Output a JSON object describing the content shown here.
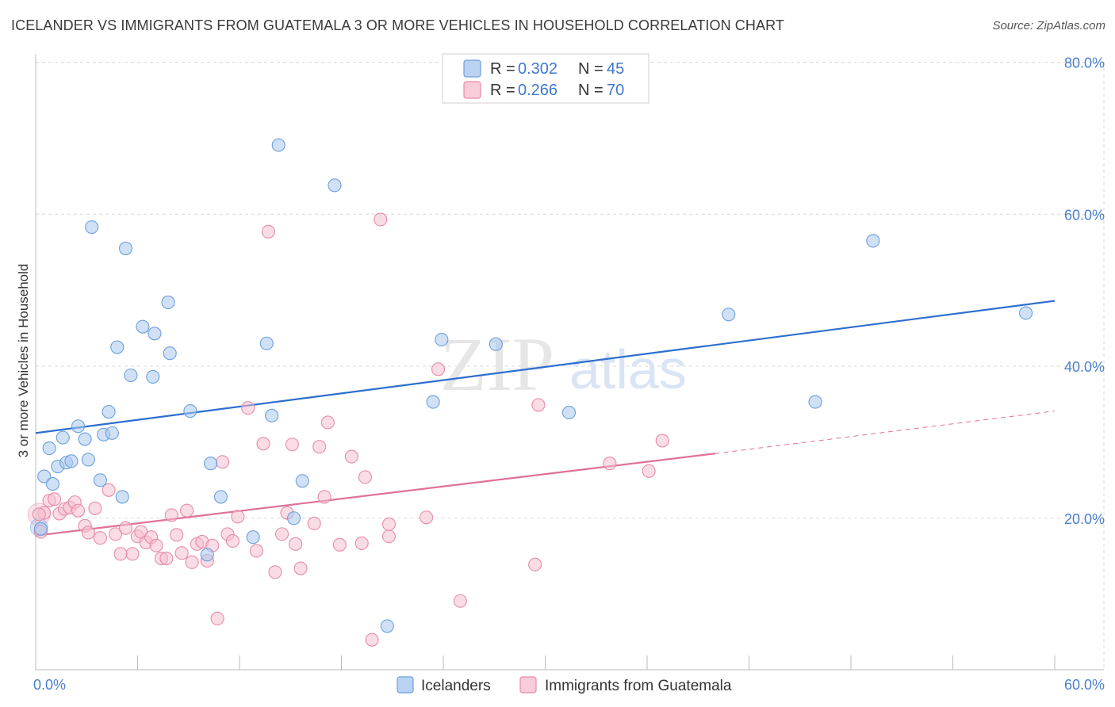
{
  "title": "ICELANDER VS IMMIGRANTS FROM GUATEMALA 3 OR MORE VEHICLES IN HOUSEHOLD CORRELATION CHART",
  "source": "Source: ZipAtlas.com",
  "watermark": {
    "main": "ZIP",
    "sub": "atlas"
  },
  "colors": {
    "blue_fill": "#a9c8ef",
    "blue_stroke": "#6d9fdc",
    "blue_line": "#2c6fd0",
    "pink_fill": "#f6bfd0",
    "pink_stroke": "#e58ca9",
    "pink_line": "#e0709a",
    "grid": "#d9d9d9",
    "tick_text": "#4a7fd0"
  },
  "legend": {
    "r_label": "R =",
    "n_label": "N =",
    "entries": [
      {
        "r": "0.302",
        "n": "45"
      },
      {
        "r": "0.266",
        "n": "70"
      }
    ]
  },
  "chart_data": {
    "type": "scatter",
    "title": "ICELANDER VS IMMIGRANTS FROM GUATEMALA 3 OR MORE VEHICLES IN HOUSEHOLD CORRELATION CHART",
    "xlabel": "",
    "ylabel": "3 or more Vehicles in Household",
    "xlim": [
      0,
      60
    ],
    "ylim": [
      0,
      80
    ],
    "x_tick_labels": [
      "0.0%",
      "60.0%"
    ],
    "y_tick_labels": [
      "20.0%",
      "40.0%",
      "60.0%",
      "80.0%"
    ],
    "y_ticks": [
      20,
      40,
      60,
      80
    ],
    "grid": true,
    "legend_position": "top-center",
    "series": [
      {
        "name": "Icelanders",
        "r": 0.302,
        "n": 45,
        "trend": {
          "x0": 0,
          "y0": 31.2,
          "x1": 60,
          "y1": 48.6
        },
        "points": [
          [
            0.3,
            18.6
          ],
          [
            0.5,
            25.5
          ],
          [
            0.8,
            29.2
          ],
          [
            1.0,
            24.5
          ],
          [
            1.3,
            26.8
          ],
          [
            1.6,
            30.6
          ],
          [
            1.8,
            27.3
          ],
          [
            2.1,
            27.5
          ],
          [
            2.5,
            32.1
          ],
          [
            2.9,
            30.4
          ],
          [
            3.1,
            27.7
          ],
          [
            3.3,
            58.3
          ],
          [
            3.8,
            25.0
          ],
          [
            4.0,
            31.0
          ],
          [
            4.3,
            34.0
          ],
          [
            4.5,
            31.2
          ],
          [
            4.8,
            42.5
          ],
          [
            5.1,
            22.8
          ],
          [
            5.3,
            55.5
          ],
          [
            5.6,
            38.8
          ],
          [
            6.3,
            45.2
          ],
          [
            6.9,
            38.6
          ],
          [
            7.0,
            44.3
          ],
          [
            7.8,
            48.4
          ],
          [
            7.9,
            41.7
          ],
          [
            9.1,
            34.1
          ],
          [
            10.1,
            15.2
          ],
          [
            10.3,
            27.2
          ],
          [
            10.9,
            22.8
          ],
          [
            12.8,
            17.5
          ],
          [
            13.6,
            43.0
          ],
          [
            13.9,
            33.5
          ],
          [
            14.3,
            69.1
          ],
          [
            15.2,
            20.0
          ],
          [
            15.7,
            24.9
          ],
          [
            17.6,
            63.8
          ],
          [
            23.4,
            35.3
          ],
          [
            23.9,
            43.5
          ],
          [
            27.1,
            42.9
          ],
          [
            31.4,
            33.9
          ],
          [
            40.8,
            46.8
          ],
          [
            45.9,
            35.3
          ],
          [
            49.3,
            56.5
          ],
          [
            58.3,
            47.0
          ],
          [
            20.7,
            5.8
          ]
        ]
      },
      {
        "name": "Immigrants from Guatemala",
        "r": 0.266,
        "n": 70,
        "trend": {
          "x0": 0,
          "y0": 17.7,
          "x1": 40,
          "y1": 28.5
        },
        "trend_dashed": {
          "x0": 40,
          "y0": 28.5,
          "x1": 60,
          "y1": 34.1
        },
        "points": [
          [
            0.3,
            18.2
          ],
          [
            0.5,
            20.7
          ],
          [
            0.8,
            22.3
          ],
          [
            1.1,
            22.5
          ],
          [
            1.4,
            20.6
          ],
          [
            1.7,
            21.2
          ],
          [
            2.0,
            21.4
          ],
          [
            2.3,
            22.1
          ],
          [
            2.5,
            21.0
          ],
          [
            2.9,
            19.0
          ],
          [
            3.1,
            18.1
          ],
          [
            3.5,
            21.3
          ],
          [
            3.8,
            17.4
          ],
          [
            4.3,
            23.7
          ],
          [
            4.7,
            17.9
          ],
          [
            5.0,
            15.3
          ],
          [
            5.3,
            18.7
          ],
          [
            5.7,
            15.3
          ],
          [
            6.0,
            17.6
          ],
          [
            6.2,
            18.2
          ],
          [
            6.5,
            16.8
          ],
          [
            6.8,
            17.5
          ],
          [
            7.1,
            16.4
          ],
          [
            7.4,
            14.7
          ],
          [
            7.7,
            14.7
          ],
          [
            8.0,
            20.4
          ],
          [
            8.3,
            17.8
          ],
          [
            8.6,
            15.4
          ],
          [
            8.9,
            21.0
          ],
          [
            9.2,
            14.2
          ],
          [
            9.5,
            16.6
          ],
          [
            9.8,
            16.9
          ],
          [
            10.1,
            14.4
          ],
          [
            10.4,
            16.4
          ],
          [
            10.7,
            6.8
          ],
          [
            11.0,
            27.4
          ],
          [
            11.3,
            17.9
          ],
          [
            11.6,
            17.0
          ],
          [
            11.9,
            20.2
          ],
          [
            12.5,
            34.5
          ],
          [
            13.0,
            15.7
          ],
          [
            13.4,
            29.8
          ],
          [
            13.7,
            57.7
          ],
          [
            14.1,
            12.9
          ],
          [
            14.5,
            17.9
          ],
          [
            14.8,
            20.7
          ],
          [
            15.1,
            29.7
          ],
          [
            15.3,
            16.6
          ],
          [
            15.6,
            13.4
          ],
          [
            16.4,
            19.3
          ],
          [
            16.7,
            29.4
          ],
          [
            17.0,
            22.8
          ],
          [
            17.2,
            32.6
          ],
          [
            17.9,
            16.5
          ],
          [
            18.6,
            28.1
          ],
          [
            19.2,
            16.7
          ],
          [
            19.4,
            25.4
          ],
          [
            19.8,
            4.0
          ],
          [
            20.3,
            59.3
          ],
          [
            20.8,
            19.2
          ],
          [
            20.8,
            17.6
          ],
          [
            23.0,
            20.1
          ],
          [
            23.7,
            39.6
          ],
          [
            25.0,
            9.1
          ],
          [
            29.4,
            13.9
          ],
          [
            29.6,
            34.9
          ],
          [
            33.8,
            27.2
          ],
          [
            36.1,
            26.2
          ],
          [
            36.9,
            30.2
          ],
          [
            0.2,
            20.5
          ]
        ]
      }
    ]
  },
  "bottom_legend": [
    "Icelanders",
    "Immigrants from Guatemala"
  ]
}
